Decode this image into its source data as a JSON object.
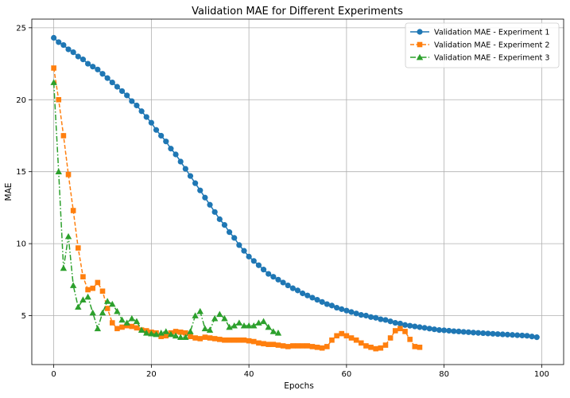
{
  "chart_data": {
    "type": "line",
    "title": "Validation MAE for Different Experiments",
    "xlabel": "Epochs",
    "ylabel": "MAE",
    "xlim": [
      -4.5,
      104.5
    ],
    "ylim": [
      1.6,
      25.6
    ],
    "xticks": [
      0,
      20,
      40,
      60,
      80,
      100
    ],
    "yticks": [
      5,
      10,
      15,
      20,
      25
    ],
    "grid": true,
    "legend_position": "top-right",
    "series": [
      {
        "name": "Validation MAE - Experiment 1",
        "color": "#1f77b4",
        "marker": "circle",
        "linestyle": "solid",
        "x": [
          0,
          1,
          2,
          3,
          4,
          5,
          6,
          7,
          8,
          9,
          10,
          11,
          12,
          13,
          14,
          15,
          16,
          17,
          18,
          19,
          20,
          21,
          22,
          23,
          24,
          25,
          26,
          27,
          28,
          29,
          30,
          31,
          32,
          33,
          34,
          35,
          36,
          37,
          38,
          39,
          40,
          41,
          42,
          43,
          44,
          45,
          46,
          47,
          48,
          49,
          50,
          51,
          52,
          53,
          54,
          55,
          56,
          57,
          58,
          59,
          60,
          61,
          62,
          63,
          64,
          65,
          66,
          67,
          68,
          69,
          70,
          71,
          72,
          73,
          74,
          75,
          76,
          77,
          78,
          79,
          80,
          81,
          82,
          83,
          84,
          85,
          86,
          87,
          88,
          89,
          90,
          91,
          92,
          93,
          94,
          95,
          96,
          97,
          98,
          99
        ],
        "values": [
          24.3,
          24.0,
          23.8,
          23.5,
          23.3,
          23.0,
          22.8,
          22.5,
          22.3,
          22.1,
          21.8,
          21.5,
          21.2,
          20.9,
          20.6,
          20.3,
          19.9,
          19.6,
          19.2,
          18.8,
          18.4,
          17.9,
          17.5,
          17.1,
          16.6,
          16.2,
          15.7,
          15.2,
          14.7,
          14.2,
          13.7,
          13.2,
          12.7,
          12.2,
          11.7,
          11.3,
          10.8,
          10.4,
          9.9,
          9.5,
          9.1,
          8.8,
          8.5,
          8.2,
          7.9,
          7.7,
          7.5,
          7.3,
          7.1,
          6.9,
          6.75,
          6.55,
          6.4,
          6.25,
          6.1,
          5.95,
          5.8,
          5.7,
          5.55,
          5.45,
          5.35,
          5.25,
          5.15,
          5.05,
          5.0,
          4.9,
          4.85,
          4.75,
          4.7,
          4.6,
          4.5,
          4.45,
          4.35,
          4.3,
          4.25,
          4.2,
          4.15,
          4.1,
          4.05,
          4.0,
          3.98,
          3.95,
          3.92,
          3.9,
          3.87,
          3.85,
          3.82,
          3.8,
          3.78,
          3.76,
          3.74,
          3.72,
          3.7,
          3.68,
          3.66,
          3.64,
          3.62,
          3.6,
          3.55,
          3.5
        ]
      },
      {
        "name": "Validation MAE - Experiment 2",
        "color": "#ff7f0e",
        "marker": "square",
        "linestyle": "dashed",
        "x": [
          0,
          1,
          2,
          3,
          4,
          5,
          6,
          7,
          8,
          9,
          10,
          11,
          12,
          13,
          14,
          15,
          16,
          17,
          18,
          19,
          20,
          21,
          22,
          23,
          24,
          25,
          26,
          27,
          28,
          29,
          30,
          31,
          32,
          33,
          34,
          35,
          36,
          37,
          38,
          39,
          40,
          41,
          42,
          43,
          44,
          45,
          46,
          47,
          48,
          49,
          50,
          51,
          52,
          53,
          54,
          55,
          56,
          57,
          58,
          59,
          60,
          61,
          62,
          63,
          64,
          65,
          66,
          67,
          68,
          69,
          70,
          71,
          72,
          73,
          74,
          75
        ],
        "values": [
          22.2,
          20.0,
          17.5,
          14.8,
          12.3,
          9.7,
          7.7,
          6.8,
          6.9,
          7.3,
          6.7,
          5.5,
          4.5,
          4.1,
          4.2,
          4.3,
          4.25,
          4.15,
          4.0,
          3.95,
          3.85,
          3.8,
          3.55,
          3.6,
          3.8,
          3.9,
          3.85,
          3.8,
          3.55,
          3.45,
          3.4,
          3.5,
          3.45,
          3.4,
          3.35,
          3.3,
          3.3,
          3.3,
          3.3,
          3.3,
          3.25,
          3.2,
          3.1,
          3.05,
          3.0,
          3.0,
          2.95,
          2.9,
          2.85,
          2.9,
          2.9,
          2.9,
          2.9,
          2.85,
          2.8,
          2.75,
          2.85,
          3.3,
          3.6,
          3.75,
          3.6,
          3.45,
          3.3,
          3.1,
          2.9,
          2.8,
          2.7,
          2.75,
          2.95,
          3.45,
          3.95,
          4.1,
          3.9,
          3.35,
          2.85,
          2.8
        ]
      },
      {
        "name": "Validation MAE - Experiment 3",
        "color": "#2ca02c",
        "marker": "triangle",
        "linestyle": "dashdot",
        "x": [
          0,
          1,
          2,
          3,
          4,
          5,
          6,
          7,
          8,
          9,
          10,
          11,
          12,
          13,
          14,
          15,
          16,
          17,
          18,
          19,
          20,
          21,
          22,
          23,
          24,
          25,
          26,
          27,
          28,
          29,
          30,
          31,
          32,
          33,
          34,
          35,
          36,
          37,
          38,
          39,
          40,
          41,
          42,
          43,
          44,
          45,
          46
        ],
        "values": [
          21.2,
          15.0,
          8.3,
          10.5,
          7.1,
          5.6,
          6.1,
          6.3,
          5.2,
          4.1,
          5.2,
          6.0,
          5.8,
          5.3,
          4.7,
          4.5,
          4.8,
          4.6,
          4.0,
          3.8,
          3.75,
          3.7,
          3.8,
          3.9,
          3.7,
          3.6,
          3.5,
          3.5,
          3.9,
          5.0,
          5.3,
          4.1,
          4.0,
          4.8,
          5.1,
          4.8,
          4.2,
          4.3,
          4.5,
          4.3,
          4.3,
          4.3,
          4.5,
          4.6,
          4.2,
          3.9,
          3.8
        ]
      }
    ]
  }
}
